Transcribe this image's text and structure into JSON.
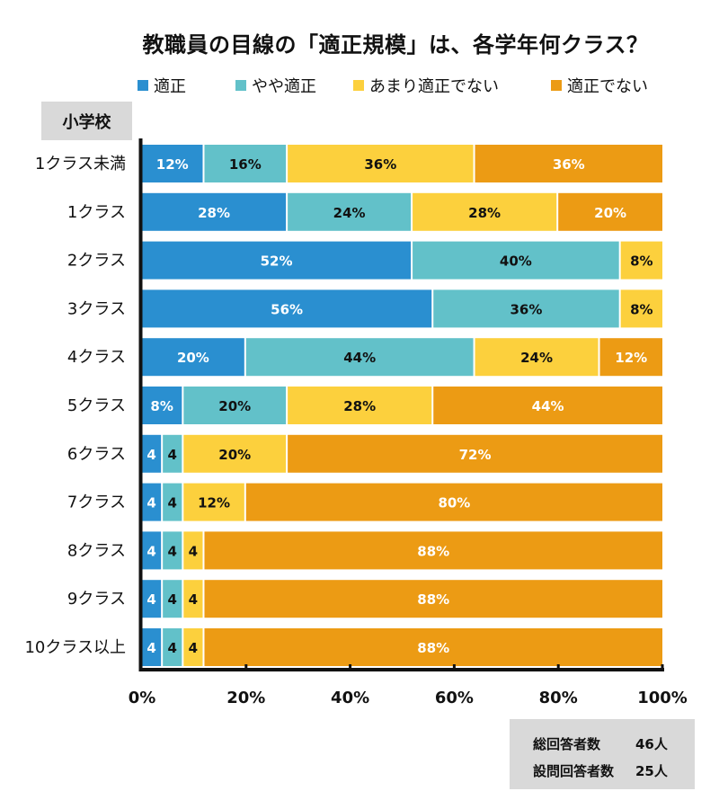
{
  "colors": {
    "appropriate": "#2a8fd0",
    "somewhat_appropriate": "#62c1c9",
    "not_very_appropriate": "#fcd03d",
    "not_appropriate": "#ec9b14",
    "axis": "#111111",
    "label_box": "#d9d9d9"
  },
  "school_label": "小学校",
  "summary": {
    "rows": [
      {
        "key": "総回答者数",
        "value": "46人"
      },
      {
        "key": "設問回答者数",
        "value": "25人"
      }
    ]
  },
  "chart_data": {
    "type": "bar",
    "orientation": "horizontal",
    "stacked": true,
    "title": "教職員の目線の「適正規模」は、各学年何クラス？",
    "xlabel": "",
    "ylabel": "",
    "xlim": [
      0,
      100
    ],
    "legend_position": "top",
    "x_ticks": [
      "0%",
      "20%",
      "40%",
      "60%",
      "80%",
      "100%"
    ],
    "categories": [
      "1クラス未満",
      "1クラス",
      "2クラス",
      "3クラス",
      "4クラス",
      "5クラス",
      "6クラス",
      "7クラス",
      "8クラス",
      "9クラス",
      "10クラス以上"
    ],
    "series": [
      {
        "name": "適正",
        "color_key": "appropriate",
        "label_color": "#ffffff",
        "values": [
          12,
          28,
          52,
          56,
          20,
          8,
          4,
          4,
          4,
          4,
          4
        ],
        "labels": [
          "12%",
          "28%",
          "52%",
          "56%",
          "20%",
          "8%",
          "4",
          "4",
          "4",
          "4",
          "4"
        ]
      },
      {
        "name": "やや適正",
        "color_key": "somewhat_appropriate",
        "label_color": "#111111",
        "values": [
          16,
          24,
          40,
          36,
          44,
          20,
          4,
          4,
          4,
          4,
          4
        ],
        "labels": [
          "16%",
          "24%",
          "40%",
          "36%",
          "44%",
          "20%",
          "4",
          "4",
          "4",
          "4",
          "4"
        ]
      },
      {
        "name": "あまり適正でない",
        "color_key": "not_very_appropriate",
        "label_color": "#111111",
        "values": [
          36,
          28,
          8,
          8,
          24,
          28,
          20,
          12,
          4,
          4,
          4
        ],
        "labels": [
          "36%",
          "28%",
          "8%",
          "8%",
          "24%",
          "28%",
          "20%",
          "12%",
          "4",
          "4",
          "4"
        ]
      },
      {
        "name": "適正でない",
        "color_key": "not_appropriate",
        "label_color": "#ffffff",
        "values": [
          36,
          20,
          0,
          0,
          12,
          44,
          72,
          80,
          88,
          88,
          88
        ],
        "labels": [
          "36%",
          "20%",
          "",
          "",
          "12%",
          "44%",
          "72%",
          "80%",
          "88%",
          "88%",
          "88%"
        ]
      }
    ]
  }
}
